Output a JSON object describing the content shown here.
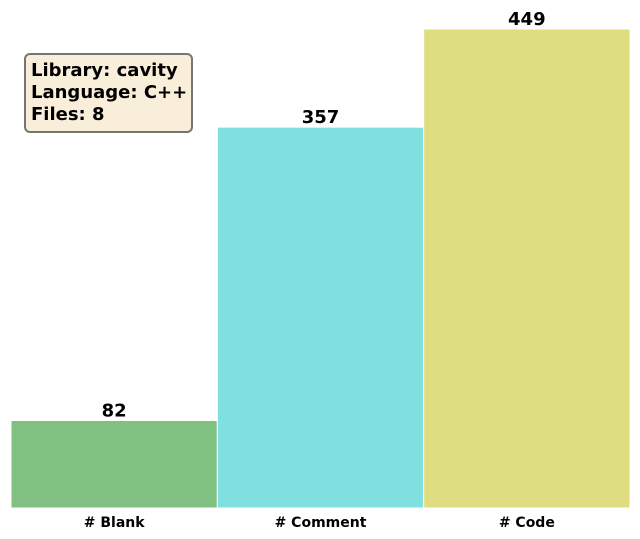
{
  "info_box": {
    "lines": [
      "Library: cavity",
      "Language: C++",
      "Files: 8"
    ]
  },
  "chart_data": {
    "type": "bar",
    "categories": [
      "# Blank",
      "# Comment",
      "# Code"
    ],
    "values": [
      82,
      357,
      449
    ],
    "data_labels": [
      "82",
      "357",
      "449"
    ],
    "colors": [
      "#80c080",
      "#80e0e0",
      "#dede80"
    ],
    "title": "",
    "xlabel": "",
    "ylabel": "",
    "ylim": [
      0,
      449
    ],
    "grid": false,
    "y_axis_visible": false
  }
}
